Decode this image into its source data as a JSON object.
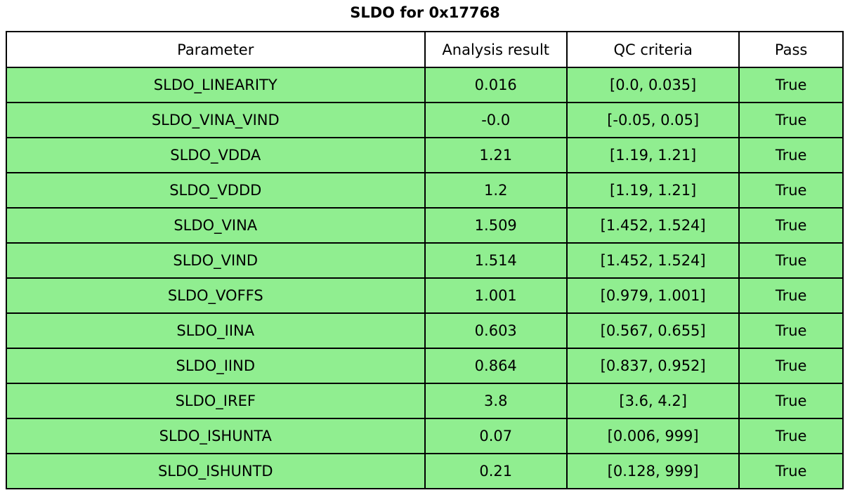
{
  "title": "SLDO for 0x17768",
  "table": {
    "columns": [
      "Parameter",
      "Analysis result",
      "QC criteria",
      "Pass"
    ],
    "rows": [
      [
        "SLDO_LINEARITY",
        "0.016",
        "[0.0, 0.035]",
        "True"
      ],
      [
        "SLDO_VINA_VIND",
        "-0.0",
        "[-0.05, 0.05]",
        "True"
      ],
      [
        "SLDO_VDDA",
        "1.21",
        "[1.19, 1.21]",
        "True"
      ],
      [
        "SLDO_VDDD",
        "1.2",
        "[1.19, 1.21]",
        "True"
      ],
      [
        "SLDO_VINA",
        "1.509",
        "[1.452, 1.524]",
        "True"
      ],
      [
        "SLDO_VIND",
        "1.514",
        "[1.452, 1.524]",
        "True"
      ],
      [
        "SLDO_VOFFS",
        "1.001",
        "[0.979, 1.001]",
        "True"
      ],
      [
        "SLDO_IINA",
        "0.603",
        "[0.567, 0.655]",
        "True"
      ],
      [
        "SLDO_IIND",
        "0.864",
        "[0.837, 0.952]",
        "True"
      ],
      [
        "SLDO_IREF",
        "3.8",
        "[3.6, 4.2]",
        "True"
      ],
      [
        "SLDO_ISHUNTA",
        "0.07",
        "[0.006, 999]",
        "True"
      ],
      [
        "SLDO_ISHUNTD",
        "0.21",
        "[0.128, 999]",
        "True"
      ]
    ]
  },
  "colors": {
    "pass_row_bg": "#90ee90",
    "header_bg": "#ffffff",
    "border": "#000000"
  },
  "chart_data": {
    "type": "table",
    "title": "SLDO for 0x17768",
    "columns": [
      "Parameter",
      "Analysis result",
      "QC criteria",
      "Pass"
    ],
    "rows": [
      {
        "parameter": "SLDO_LINEARITY",
        "analysis_result": 0.016,
        "qc_criteria": [
          0.0,
          0.035
        ],
        "pass": true
      },
      {
        "parameter": "SLDO_VINA_VIND",
        "analysis_result": -0.0,
        "qc_criteria": [
          -0.05,
          0.05
        ],
        "pass": true
      },
      {
        "parameter": "SLDO_VDDA",
        "analysis_result": 1.21,
        "qc_criteria": [
          1.19,
          1.21
        ],
        "pass": true
      },
      {
        "parameter": "SLDO_VDDD",
        "analysis_result": 1.2,
        "qc_criteria": [
          1.19,
          1.21
        ],
        "pass": true
      },
      {
        "parameter": "SLDO_VINA",
        "analysis_result": 1.509,
        "qc_criteria": [
          1.452,
          1.524
        ],
        "pass": true
      },
      {
        "parameter": "SLDO_VIND",
        "analysis_result": 1.514,
        "qc_criteria": [
          1.452,
          1.524
        ],
        "pass": true
      },
      {
        "parameter": "SLDO_VOFFS",
        "analysis_result": 1.001,
        "qc_criteria": [
          0.979,
          1.001
        ],
        "pass": true
      },
      {
        "parameter": "SLDO_IINA",
        "analysis_result": 0.603,
        "qc_criteria": [
          0.567,
          0.655
        ],
        "pass": true
      },
      {
        "parameter": "SLDO_IIND",
        "analysis_result": 0.864,
        "qc_criteria": [
          0.837,
          0.952
        ],
        "pass": true
      },
      {
        "parameter": "SLDO_IREF",
        "analysis_result": 3.8,
        "qc_criteria": [
          3.6,
          4.2
        ],
        "pass": true
      },
      {
        "parameter": "SLDO_ISHUNTA",
        "analysis_result": 0.07,
        "qc_criteria": [
          0.006,
          999
        ],
        "pass": true
      },
      {
        "parameter": "SLDO_ISHUNTD",
        "analysis_result": 0.21,
        "qc_criteria": [
          0.128,
          999
        ],
        "pass": true
      }
    ]
  }
}
